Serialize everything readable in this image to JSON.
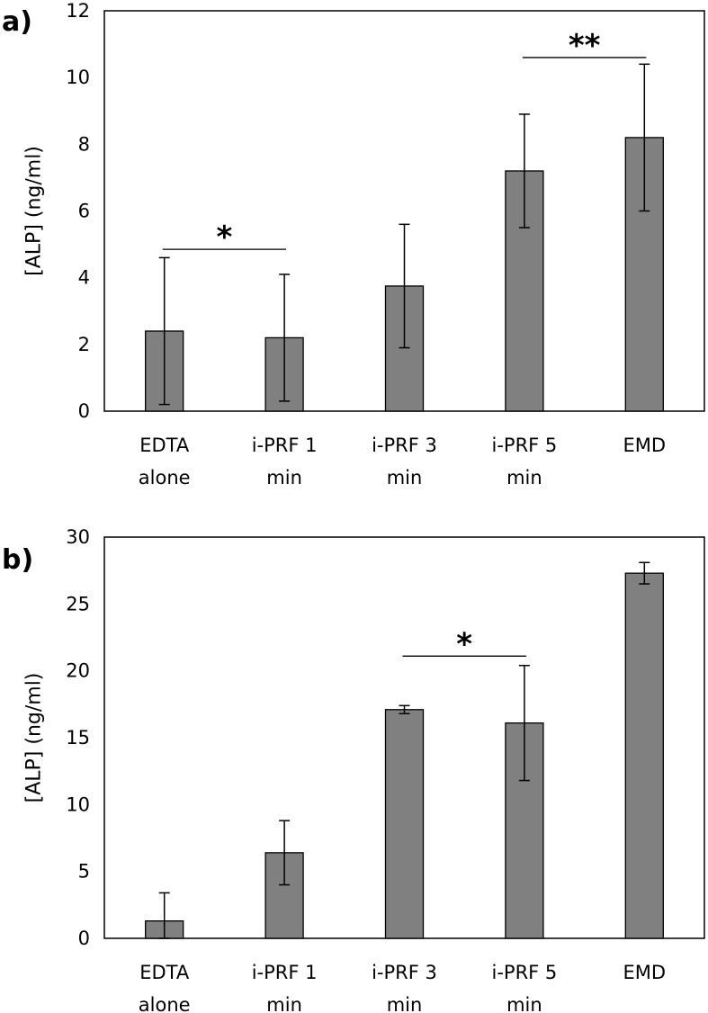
{
  "chart_data": [
    {
      "type": "bar",
      "panel_label": "a)",
      "ylabel": "[ALP] (ng/ml)",
      "xlabel": "",
      "ylim": [
        0,
        12
      ],
      "yticks": [
        0,
        2,
        4,
        6,
        8,
        10,
        12
      ],
      "categories": [
        {
          "line1": "EDTA",
          "line2": "alone"
        },
        {
          "line1": "i-PRF 1",
          "line2": "min"
        },
        {
          "line1": "i-PRF 3",
          "line2": "min"
        },
        {
          "line1": "i-PRF 5",
          "line2": "min"
        },
        {
          "line1": "EMD",
          "line2": ""
        }
      ],
      "values": [
        2.4,
        2.2,
        3.75,
        7.2,
        8.2
      ],
      "errors": [
        2.2,
        1.9,
        1.85,
        1.7,
        2.2
      ],
      "bar_color": "#808080",
      "significance": [
        {
          "from": 0,
          "to": 1,
          "label": "*",
          "y": 4.85
        },
        {
          "from": 3,
          "to": 4,
          "label": "**",
          "y": 10.6
        }
      ]
    },
    {
      "type": "bar",
      "panel_label": "b)",
      "ylabel": "[ALP] (ng/ml)",
      "xlabel": "",
      "ylim": [
        0,
        30
      ],
      "yticks": [
        0,
        5,
        10,
        15,
        20,
        25,
        30
      ],
      "categories": [
        {
          "line1": "EDTA",
          "line2": "alone"
        },
        {
          "line1": "i-PRF 1",
          "line2": "min"
        },
        {
          "line1": "i-PRF 3",
          "line2": "min"
        },
        {
          "line1": "i-PRF 5",
          "line2": "min"
        },
        {
          "line1": "EMD",
          "line2": ""
        }
      ],
      "values": [
        1.3,
        6.4,
        17.1,
        16.1,
        27.3
      ],
      "errors": [
        2.1,
        2.4,
        0.3,
        4.3,
        0.8
      ],
      "bar_color": "#808080",
      "significance": [
        {
          "from": 2,
          "to": 3,
          "label": "*",
          "y": 21.1
        }
      ]
    }
  ]
}
